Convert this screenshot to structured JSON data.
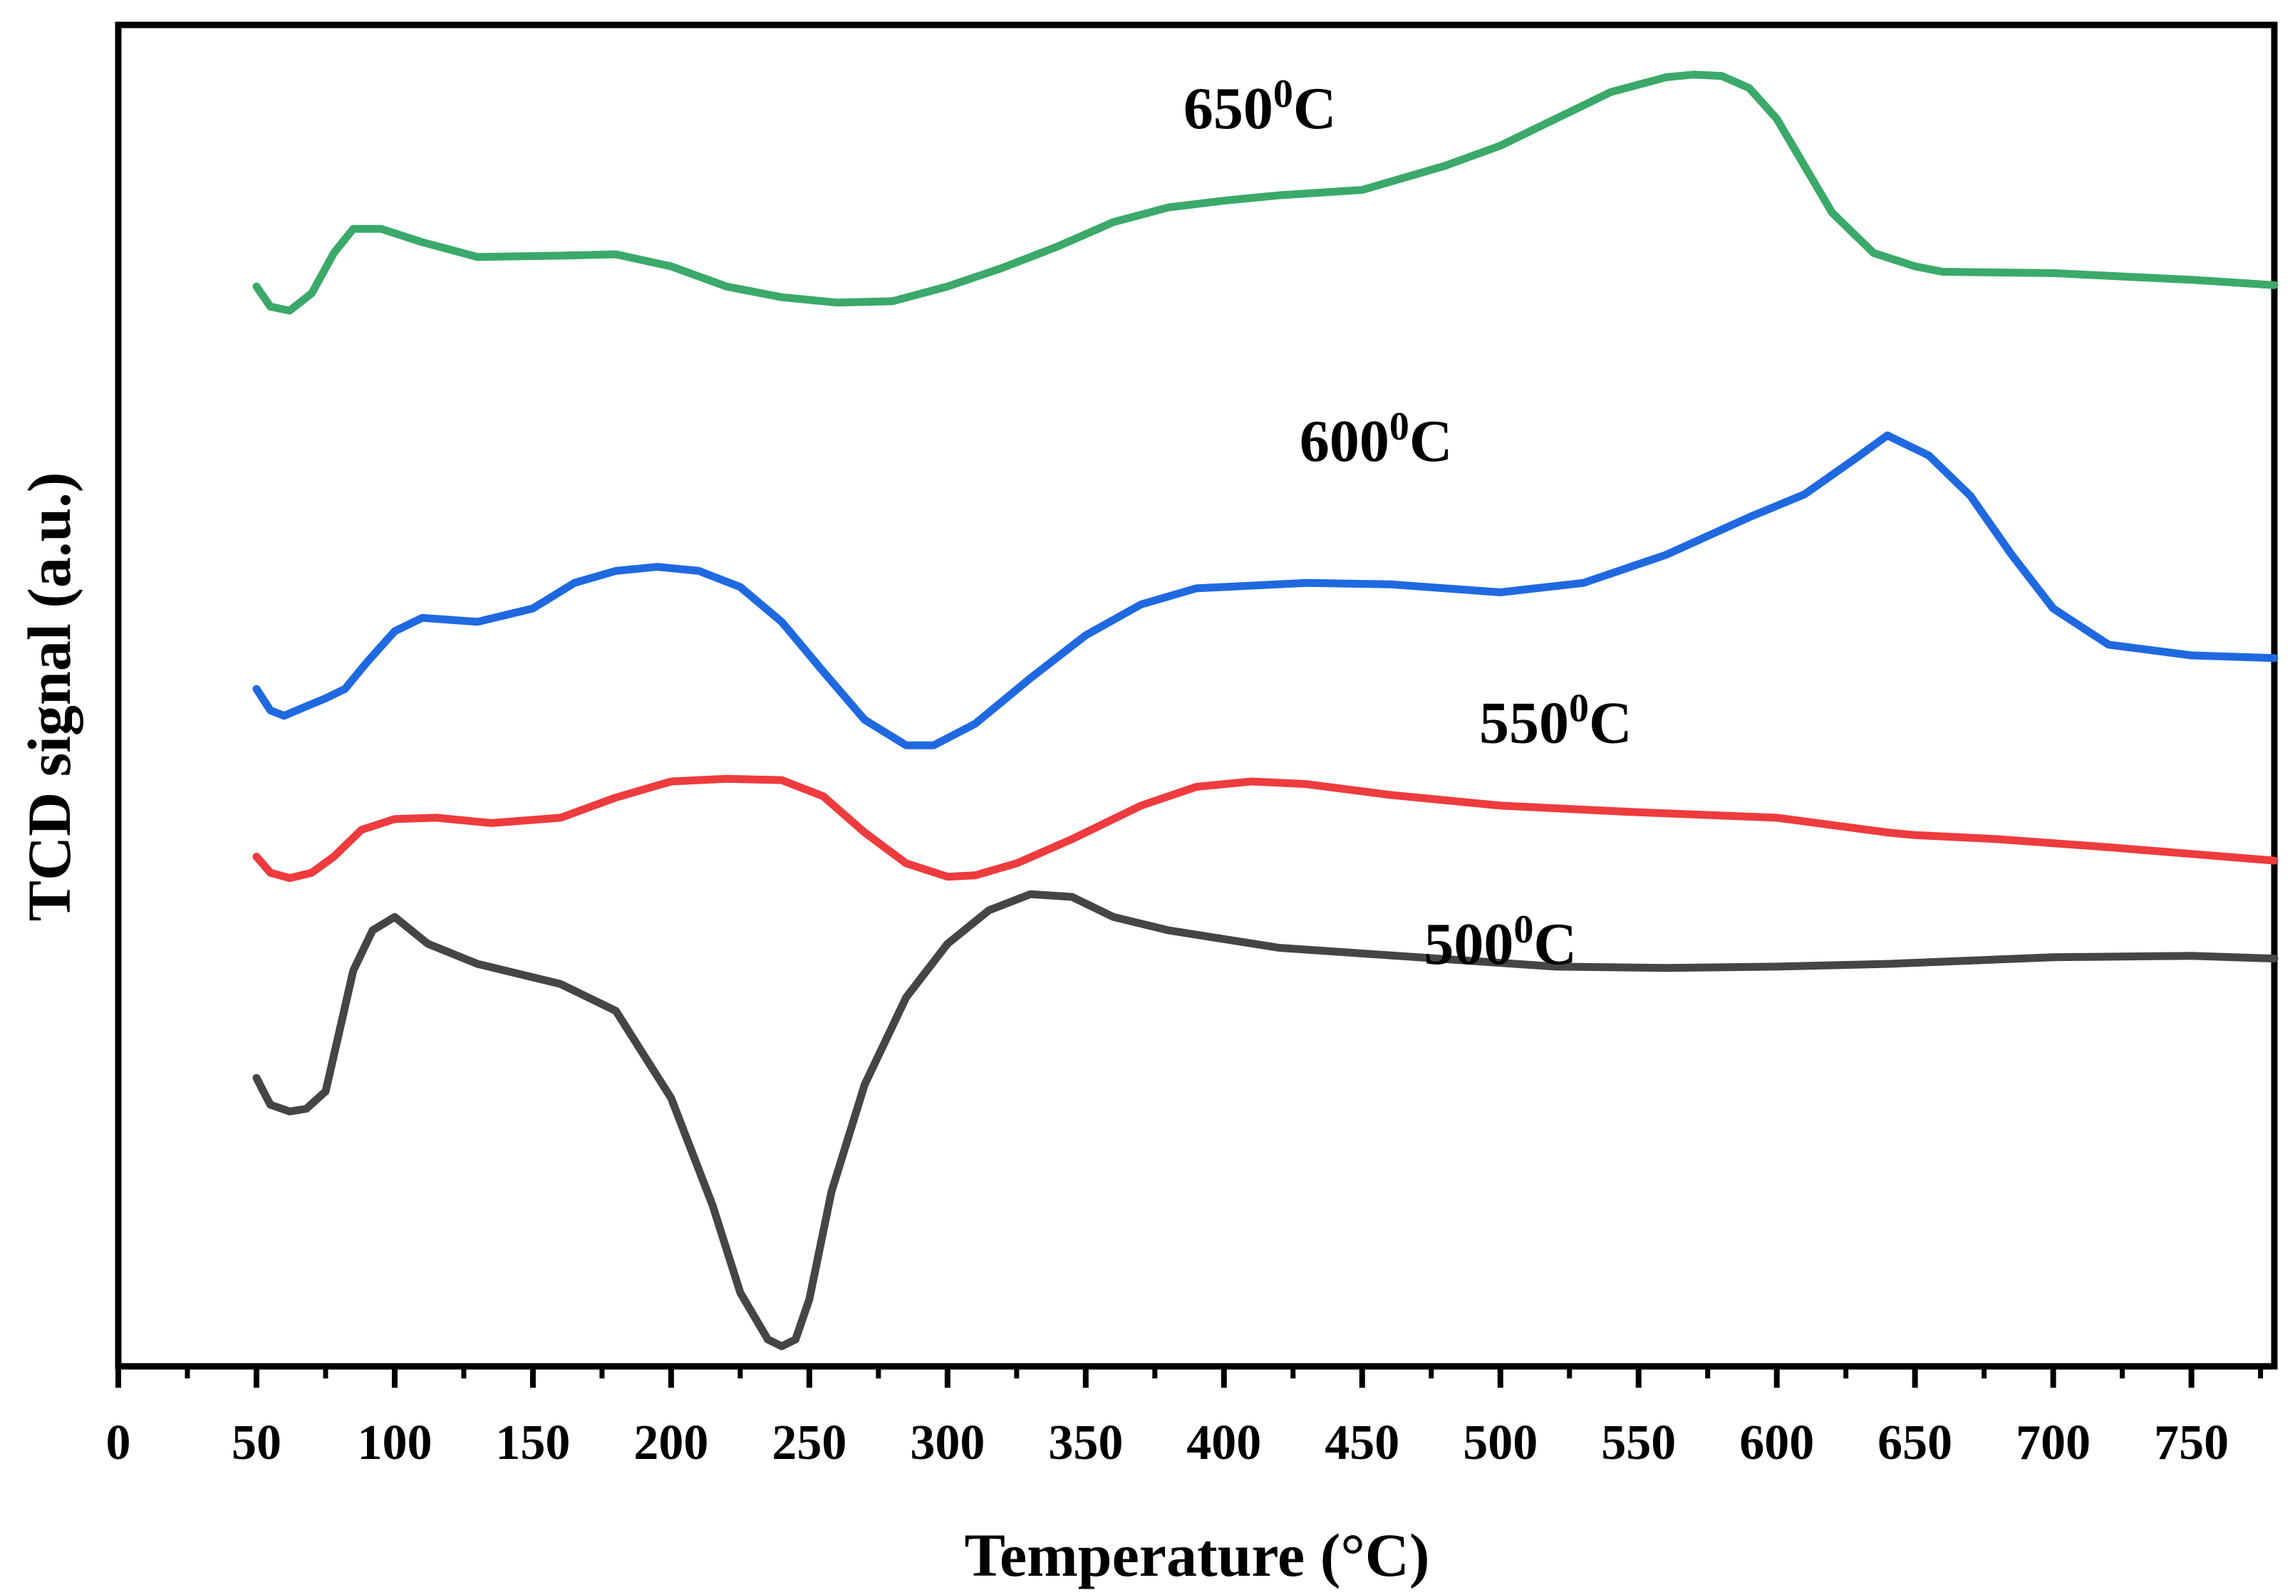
{
  "chart_data": {
    "type": "line",
    "title": "",
    "xlabel": "Temperature (°C)",
    "ylabel": "TCD signal (a.u.)",
    "xlim": [
      0,
      780
    ],
    "xticks": [
      "0",
      "50",
      "100",
      "150",
      "200",
      "250",
      "300",
      "350",
      "400",
      "450",
      "500",
      "550",
      "600",
      "650",
      "700",
      "750"
    ],
    "xtick_values": [
      0,
      50,
      100,
      150,
      200,
      250,
      300,
      350,
      400,
      450,
      500,
      550,
      600,
      650,
      700,
      750
    ],
    "minor_tick_step": 25,
    "ylim": [
      0,
      100
    ],
    "yticks_shown": false,
    "series": [
      {
        "name": "500",
        "label_main": "500",
        "label_sup": "0",
        "label_unit": "C",
        "label_at": [
          500,
          30
        ],
        "color": "#454545",
        "x": [
          50,
          55,
          62,
          68,
          75,
          80,
          85,
          92,
          100,
          112,
          130,
          160,
          180,
          200,
          215,
          225,
          235,
          240,
          245,
          250,
          258,
          270,
          285,
          300,
          315,
          330,
          345,
          360,
          380,
          420,
          470,
          520,
          560,
          600,
          640,
          700,
          750,
          780
        ],
        "y": [
          21.5,
          19.5,
          19,
          19.2,
          20.5,
          25,
          29.5,
          32.5,
          33.5,
          31.5,
          30,
          28.5,
          26.5,
          20,
          12,
          5.5,
          2,
          1.5,
          2,
          5,
          13,
          21,
          27.5,
          31.5,
          34,
          35.2,
          35,
          33.5,
          32.5,
          31.2,
          30.5,
          29.8,
          29.7,
          29.8,
          30,
          30.5,
          30.6,
          30.4
        ]
      },
      {
        "name": "550",
        "label_main": "550",
        "label_sup": "0",
        "label_unit": "C",
        "label_at": [
          520,
          46.5
        ],
        "color": "#ee3b3e",
        "x": [
          50,
          55,
          62,
          70,
          78,
          88,
          100,
          115,
          135,
          160,
          180,
          200,
          220,
          240,
          255,
          270,
          285,
          300,
          310,
          325,
          345,
          370,
          390,
          410,
          430,
          460,
          500,
          550,
          600,
          640,
          650,
          680,
          720,
          750,
          780
        ],
        "y": [
          38,
          36.8,
          36.4,
          36.8,
          38,
          40,
          40.8,
          40.9,
          40.5,
          40.9,
          42.4,
          43.6,
          43.8,
          43.7,
          42.5,
          39.8,
          37.5,
          36.5,
          36.6,
          37.5,
          39.3,
          41.8,
          43.2,
          43.6,
          43.4,
          42.6,
          41.8,
          41.3,
          40.9,
          39.8,
          39.6,
          39.3,
          38.7,
          38.2,
          37.7
        ]
      },
      {
        "name": "600",
        "label_main": "600",
        "label_sup": "0",
        "label_unit": "C",
        "label_at": [
          455,
          67.5
        ],
        "color": "#1f69e0",
        "x": [
          50,
          55,
          60,
          68,
          75,
          82,
          90,
          100,
          110,
          130,
          150,
          165,
          180,
          195,
          210,
          225,
          240,
          255,
          270,
          285,
          295,
          310,
          330,
          350,
          370,
          390,
          430,
          460,
          500,
          530,
          560,
          590,
          610,
          630,
          640,
          655,
          670,
          685,
          700,
          720,
          750,
          780
        ],
        "y": [
          50.5,
          48.9,
          48.5,
          49.2,
          49.8,
          50.5,
          52.5,
          54.8,
          55.8,
          55.5,
          56.5,
          58.4,
          59.3,
          59.6,
          59.3,
          58.1,
          55.5,
          51.8,
          48.2,
          46.3,
          46.3,
          47.9,
          51.3,
          54.5,
          56.8,
          58,
          58.4,
          58.3,
          57.7,
          58.4,
          60.5,
          63.3,
          65,
          67.9,
          69.4,
          67.9,
          64.9,
          60.5,
          56.5,
          53.8,
          53,
          52.8
        ]
      },
      {
        "name": "650",
        "label_main": "650",
        "label_sup": "0",
        "label_unit": "C",
        "label_at": [
          413,
          92.3
        ],
        "color": "#3aa96a",
        "x": [
          50,
          55,
          62,
          70,
          78,
          85,
          95,
          110,
          130,
          160,
          180,
          200,
          220,
          240,
          260,
          280,
          300,
          320,
          340,
          360,
          380,
          400,
          420,
          450,
          480,
          500,
          520,
          540,
          560,
          570,
          580,
          590,
          600,
          610,
          620,
          635,
          650,
          660,
          700,
          750,
          780
        ],
        "y": [
          80.5,
          79,
          78.7,
          80,
          83,
          84.8,
          84.8,
          83.8,
          82.7,
          82.8,
          82.9,
          82,
          80.5,
          79.7,
          79.3,
          79.4,
          80.5,
          81.9,
          83.5,
          85.3,
          86.4,
          86.9,
          87.3,
          87.7,
          89.5,
          91,
          93,
          95,
          96.1,
          96.3,
          96.2,
          95.3,
          93,
          89.5,
          86,
          83,
          82,
          81.6,
          81.5,
          81,
          80.6
        ]
      }
    ]
  }
}
